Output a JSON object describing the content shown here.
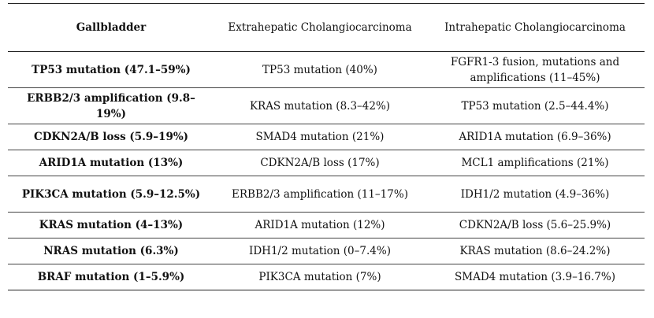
{
  "headers": [
    "Gallbladder",
    "Extrahepatic Cholangiocarcinoma",
    "Intrahepatic Cholangiocarcinoma"
  ],
  "rows": [
    [
      "TP53 mutation (47.1–59%)",
      "TP53 mutation (40%)",
      "FGFR1-3 fusion, mutations and amplifications (11–45%)"
    ],
    [
      "ERBB2/3 amplification (9.8–19%)",
      "KRAS mutation (8.3–42%)",
      "TP53 mutation (2.5–44.4%)"
    ],
    [
      "CDKN2A/B loss (5.9–19%)",
      "SMAD4 mutation (21%)",
      "ARID1A mutation (6.9–36%)"
    ],
    [
      "ARID1A mutation (13%)",
      "CDKN2A/B loss (17%)",
      "MCL1 amplifications (21%)"
    ],
    [
      "PIK3CA mutation (5.9–12.5%)",
      "ERBB2/3 amplification (11–17%)",
      "IDH1/2 mutation (4.9–36%)"
    ],
    [
      "KRAS mutation (4–13%)",
      "ARID1A mutation (12%)",
      "CDKN2A/B loss (5.6–25.9%)"
    ],
    [
      "NRAS mutation (6.3%)",
      "IDH1/2 mutation (0–7.4%)",
      "KRAS mutation (8.6–24.2%)"
    ],
    [
      "BRAF mutation (1–5.9%)",
      "PIK3CA mutation (7%)",
      "SMAD4 mutation (3.9–16.7%)"
    ]
  ]
}
